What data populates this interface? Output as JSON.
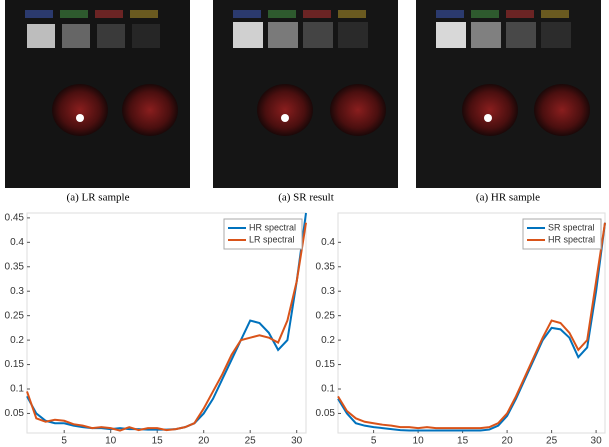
{
  "captions": [
    "(a) LR sample",
    "(a) SR result",
    "(a) HR sample"
  ],
  "chart_data": [
    {
      "type": "line",
      "xlim": [
        1,
        31
      ],
      "ylim": [
        0.01,
        0.46
      ],
      "xticks": [
        5,
        10,
        15,
        20,
        25,
        30
      ],
      "yticks": [
        0.05,
        0.1,
        0.15,
        0.2,
        0.25,
        0.3,
        0.35,
        0.4,
        0.45
      ],
      "legend": "upper right",
      "x": [
        1,
        2,
        3,
        4,
        5,
        6,
        7,
        8,
        9,
        10,
        11,
        12,
        13,
        14,
        15,
        16,
        17,
        18,
        19,
        20,
        21,
        22,
        23,
        24,
        25,
        26,
        27,
        28,
        29,
        30,
        31
      ],
      "series": [
        {
          "name": "HR spectral",
          "color": "#0072BD",
          "values": [
            0.085,
            0.05,
            0.035,
            0.03,
            0.03,
            0.025,
            0.022,
            0.02,
            0.02,
            0.018,
            0.02,
            0.018,
            0.018,
            0.017,
            0.017,
            0.017,
            0.018,
            0.022,
            0.03,
            0.05,
            0.08,
            0.12,
            0.16,
            0.2,
            0.24,
            0.235,
            0.215,
            0.18,
            0.2,
            0.32,
            0.46
          ]
        },
        {
          "name": "LR spectral",
          "color": "#D95319",
          "values": [
            0.095,
            0.04,
            0.033,
            0.037,
            0.035,
            0.028,
            0.025,
            0.02,
            0.022,
            0.02,
            0.015,
            0.022,
            0.016,
            0.02,
            0.02,
            0.016,
            0.018,
            0.022,
            0.03,
            0.06,
            0.095,
            0.13,
            0.17,
            0.2,
            0.205,
            0.21,
            0.205,
            0.195,
            0.24,
            0.32,
            0.44
          ]
        }
      ]
    },
    {
      "type": "line",
      "xlim": [
        1,
        31
      ],
      "ylim": [
        0.01,
        0.46
      ],
      "xticks": [
        5,
        10,
        15,
        20,
        25,
        30
      ],
      "yticks": [
        0.05,
        0.1,
        0.15,
        0.2,
        0.25,
        0.3,
        0.35,
        0.4
      ],
      "legend": "upper right",
      "x": [
        1,
        2,
        3,
        4,
        5,
        6,
        7,
        8,
        9,
        10,
        11,
        12,
        13,
        14,
        15,
        16,
        17,
        18,
        19,
        20,
        21,
        22,
        23,
        24,
        25,
        26,
        27,
        28,
        29,
        30,
        31
      ],
      "series": [
        {
          "name": "SR spectral",
          "color": "#0072BD",
          "values": [
            0.08,
            0.05,
            0.03,
            0.025,
            0.022,
            0.02,
            0.018,
            0.016,
            0.015,
            0.015,
            0.015,
            0.015,
            0.015,
            0.015,
            0.015,
            0.015,
            0.015,
            0.017,
            0.025,
            0.045,
            0.08,
            0.12,
            0.16,
            0.2,
            0.225,
            0.222,
            0.205,
            0.165,
            0.185,
            0.3,
            0.44
          ]
        },
        {
          "name": "HR spectral",
          "color": "#D95319",
          "values": [
            0.085,
            0.055,
            0.04,
            0.033,
            0.03,
            0.027,
            0.025,
            0.022,
            0.022,
            0.02,
            0.022,
            0.02,
            0.02,
            0.02,
            0.02,
            0.02,
            0.02,
            0.022,
            0.03,
            0.05,
            0.085,
            0.125,
            0.165,
            0.205,
            0.24,
            0.235,
            0.215,
            0.18,
            0.2,
            0.32,
            0.44
          ]
        }
      ]
    }
  ]
}
